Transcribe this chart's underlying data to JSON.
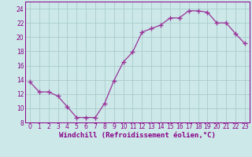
{
  "x": [
    0,
    1,
    2,
    3,
    4,
    5,
    6,
    7,
    8,
    9,
    10,
    11,
    12,
    13,
    14,
    15,
    16,
    17,
    18,
    19,
    20,
    21,
    22,
    23
  ],
  "y": [
    13.7,
    12.3,
    12.3,
    11.7,
    10.2,
    8.7,
    8.7,
    8.7,
    10.7,
    13.9,
    16.5,
    17.9,
    20.7,
    21.2,
    21.7,
    22.7,
    22.7,
    23.7,
    23.7,
    23.5,
    22.0,
    22.0,
    20.5,
    19.1
  ],
  "line_color": "#993399",
  "marker": "+",
  "marker_size": 4,
  "bg_color": "#cce8e8",
  "grid_color": "#aacccc",
  "xlabel": "Windchill (Refroidissement éolien,°C)",
  "ylim": [
    8,
    25
  ],
  "xlim_min": -0.5,
  "xlim_max": 23.5,
  "yticks": [
    8,
    10,
    12,
    14,
    16,
    18,
    20,
    22,
    24
  ],
  "xticks": [
    0,
    1,
    2,
    3,
    4,
    5,
    6,
    7,
    8,
    9,
    10,
    11,
    12,
    13,
    14,
    15,
    16,
    17,
    18,
    19,
    20,
    21,
    22,
    23
  ],
  "tick_label_fontsize": 5.5,
  "xlabel_fontsize": 6.5,
  "axis_label_color": "#880088",
  "spine_color": "#880088"
}
